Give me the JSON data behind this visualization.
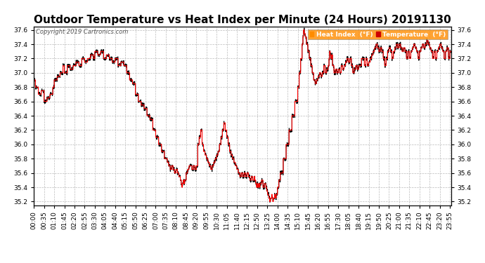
{
  "title": "Outdoor Temperature vs Heat Index per Minute (24 Hours) 20191130",
  "copyright_text": "Copyright 2019 Cartronics.com",
  "ylim": [
    35.15,
    37.65
  ],
  "yticks": [
    35.2,
    35.4,
    35.6,
    35.8,
    36.0,
    36.2,
    36.4,
    36.6,
    36.8,
    37.0,
    37.2,
    37.4,
    37.6
  ],
  "legend_labels": [
    "Heat Index  (°F)",
    "Temperature  (°F)"
  ],
  "line_color_heat": "#FF0000",
  "line_color_temp": "#000000",
  "bg_color": "#FFFFFF",
  "grid_color": "#BBBBBB",
  "title_fontsize": 11,
  "tick_fontsize": 6.5,
  "num_minutes": 1440,
  "tick_interval": 35
}
